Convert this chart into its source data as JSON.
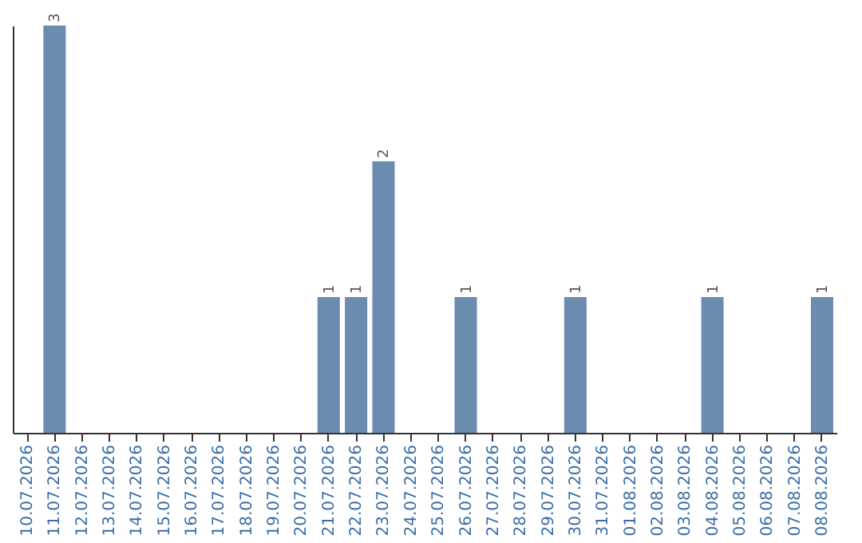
{
  "chart_data": {
    "type": "bar",
    "categories": [
      "10.07.2026",
      "11.07.2026",
      "12.07.2026",
      "13.07.2026",
      "14.07.2026",
      "15.07.2026",
      "16.07.2026",
      "17.07.2026",
      "18.07.2026",
      "19.07.2026",
      "20.07.2026",
      "21.07.2026",
      "22.07.2026",
      "23.07.2026",
      "24.07.2026",
      "25.07.2026",
      "26.07.2026",
      "27.07.2026",
      "28.07.2026",
      "29.07.2026",
      "30.07.2026",
      "31.07.2026",
      "01.08.2026",
      "02.08.2026",
      "03.08.2026",
      "04.08.2026",
      "05.08.2026",
      "06.08.2026",
      "07.08.2026",
      "08.08.2026"
    ],
    "values": [
      0,
      3,
      0,
      0,
      0,
      0,
      0,
      0,
      0,
      0,
      0,
      1,
      1,
      2,
      0,
      0,
      1,
      0,
      0,
      0,
      1,
      0,
      0,
      0,
      0,
      1,
      0,
      0,
      0,
      1
    ],
    "value_labels": [
      null,
      "3",
      null,
      null,
      null,
      null,
      null,
      null,
      null,
      null,
      null,
      "1",
      "1",
      "2",
      null,
      null,
      "1",
      null,
      null,
      null,
      "1",
      null,
      null,
      null,
      null,
      "1",
      null,
      null,
      null,
      "1"
    ],
    "color": "#6b8cae",
    "tick_labels": "x",
    "grid": false
  }
}
